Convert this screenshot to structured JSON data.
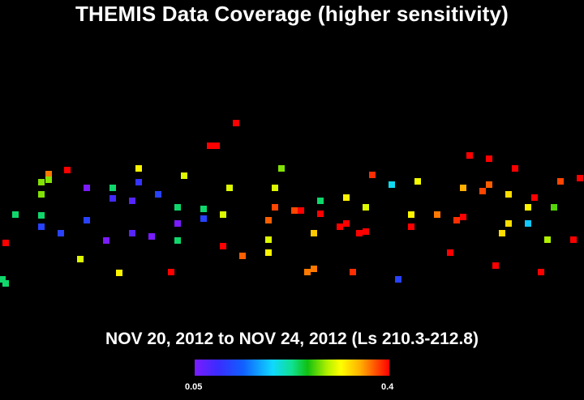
{
  "title": "THEMIS Data Coverage (higher sensitivity)",
  "subtitle": "NOV 20, 2012 to NOV 24, 2012 (Ls 210.3-212.8)",
  "colorbar": {
    "min_label": "0.05",
    "max_label": "0.4"
  },
  "chart_data": {
    "type": "heatmap",
    "value_range": [
      0.05,
      0.4
    ],
    "colormap": [
      "#7a1cff",
      "#3a2cff",
      "#1060ff",
      "#10d8ff",
      "#10e090",
      "#10c010",
      "#b0f000",
      "#ffff00",
      "#ffb000",
      "#ff5000",
      "#ff0000"
    ],
    "tracks": [
      {
        "lon": 7,
        "cells": [
          [
            350,
            0.2
          ],
          [
            300,
            0.4
          ]
        ]
      },
      {
        "lon": 19,
        "cells": [
          [
            265,
            0.2
          ]
        ]
      },
      {
        "lon": 51,
        "cells": [
          [
            225,
            0.25
          ],
          [
            240,
            0.25
          ],
          [
            266,
            0.2
          ],
          [
            280,
            0.1
          ]
        ]
      },
      {
        "lon": 60,
        "cells": [
          [
            215,
            0.35
          ],
          [
            222,
            0.25
          ]
        ]
      },
      {
        "lon": 75,
        "cells": [
          [
            288,
            0.1
          ]
        ]
      },
      {
        "lon": 83,
        "cells": [
          [
            210,
            0.4
          ]
        ]
      },
      {
        "lon": 99,
        "cells": [
          [
            320,
            0.28
          ]
        ]
      },
      {
        "lon": 107,
        "cells": [
          [
            232,
            0.05
          ],
          [
            272,
            0.1
          ]
        ]
      },
      {
        "lon": 131,
        "cells": [
          [
            297,
            0.05
          ]
        ]
      },
      {
        "lon": 139,
        "cells": [
          [
            232,
            0.2
          ],
          [
            245,
            0.08
          ]
        ]
      },
      {
        "lon": 147,
        "cells": [
          [
            337,
            0.3
          ]
        ]
      },
      {
        "lon": 163,
        "cells": [
          [
            248,
            0.07
          ],
          [
            288,
            0.07
          ]
        ]
      },
      {
        "lon": 171,
        "cells": [
          [
            208,
            0.3
          ],
          [
            225,
            0.09
          ]
        ]
      },
      {
        "lon": 187,
        "cells": [
          [
            292,
            0.05
          ]
        ]
      },
      {
        "lon": 195,
        "cells": [
          [
            240,
            0.1
          ]
        ]
      },
      {
        "lon": 211,
        "cells": [
          [
            336,
            0.4
          ]
        ]
      },
      {
        "lon": 219,
        "cells": [
          [
            256,
            0.2
          ],
          [
            276,
            0.05
          ],
          [
            297,
            0.2
          ]
        ]
      },
      {
        "lon": 227,
        "cells": [
          [
            217,
            0.28
          ]
        ]
      },
      {
        "lon": 251,
        "cells": [
          [
            258,
            0.2
          ],
          [
            270,
            0.1
          ]
        ]
      },
      {
        "lon": 259,
        "cells": [
          [
            180,
            0.4
          ]
        ]
      },
      {
        "lon": 267,
        "cells": [
          [
            180,
            0.4
          ]
        ]
      },
      {
        "lon": 275,
        "cells": [
          [
            265,
            0.28
          ],
          [
            304,
            0.4
          ]
        ]
      },
      {
        "lon": 283,
        "cells": [
          [
            232,
            0.28
          ]
        ]
      },
      {
        "lon": 291,
        "cells": [
          [
            152,
            0.4
          ]
        ]
      },
      {
        "lon": 299,
        "cells": [
          [
            316,
            0.36
          ]
        ]
      },
      {
        "lon": 331,
        "cells": [
          [
            272,
            0.36
          ],
          [
            296,
            0.28
          ],
          [
            312,
            0.3
          ]
        ]
      },
      {
        "lon": 339,
        "cells": [
          [
            232,
            0.28
          ],
          [
            256,
            0.37
          ]
        ]
      },
      {
        "lon": 347,
        "cells": [
          [
            208,
            0.25
          ]
        ]
      },
      {
        "lon": 363,
        "cells": [
          [
            260,
            0.37
          ]
        ]
      },
      {
        "lon": 371,
        "cells": [
          [
            260,
            0.4
          ]
        ]
      },
      {
        "lon": 379,
        "cells": [
          [
            336,
            0.35
          ]
        ]
      },
      {
        "lon": 387,
        "cells": [
          [
            288,
            0.32
          ],
          [
            332,
            0.35
          ]
        ]
      },
      {
        "lon": 395,
        "cells": [
          [
            248,
            0.2
          ],
          [
            264,
            0.4
          ]
        ]
      },
      {
        "lon": 419,
        "cells": [
          [
            280,
            0.4
          ]
        ]
      },
      {
        "lon": 427,
        "cells": [
          [
            244,
            0.3
          ],
          [
            276,
            0.4
          ]
        ]
      },
      {
        "lon": 435,
        "cells": [
          [
            336,
            0.38
          ]
        ]
      },
      {
        "lon": 443,
        "cells": [
          [
            288,
            0.4
          ]
        ]
      },
      {
        "lon": 451,
        "cells": [
          [
            256,
            0.28
          ],
          [
            286,
            0.4
          ]
        ]
      },
      {
        "lon": 459,
        "cells": [
          [
            216,
            0.38
          ]
        ]
      },
      {
        "lon": 483,
        "cells": [
          [
            228,
            0.16
          ]
        ]
      },
      {
        "lon": 491,
        "cells": [
          [
            345,
            0.1
          ]
        ]
      },
      {
        "lon": 507,
        "cells": [
          [
            265,
            0.3
          ],
          [
            280,
            0.4
          ]
        ]
      },
      {
        "lon": 515,
        "cells": [
          [
            224,
            0.29
          ]
        ]
      },
      {
        "lon": 539,
        "cells": [
          [
            265,
            0.35
          ]
        ]
      },
      {
        "lon": 555,
        "cells": [
          [
            312,
            0.4
          ]
        ]
      },
      {
        "lon": 563,
        "cells": [
          [
            272,
            0.38
          ]
        ]
      },
      {
        "lon": 571,
        "cells": [
          [
            232,
            0.33
          ],
          [
            268,
            0.4
          ]
        ]
      },
      {
        "lon": 579,
        "cells": [
          [
            192,
            0.4
          ]
        ]
      },
      {
        "lon": 595,
        "cells": [
          [
            236,
            0.37
          ]
        ]
      },
      {
        "lon": 603,
        "cells": [
          [
            196,
            0.4
          ],
          [
            228,
            0.36
          ]
        ]
      },
      {
        "lon": 611,
        "cells": [
          [
            328,
            0.4
          ]
        ]
      },
      {
        "lon": 619,
        "cells": [
          [
            288,
            0.31
          ]
        ]
      },
      {
        "lon": 627,
        "cells": [
          [
            240,
            0.31
          ],
          [
            276,
            0.31
          ]
        ]
      },
      {
        "lon": 635,
        "cells": [
          [
            208,
            0.4
          ]
        ]
      },
      {
        "lon": 651,
        "cells": [
          [
            256,
            0.3
          ],
          [
            276,
            0.15
          ]
        ]
      },
      {
        "lon": 659,
        "cells": [
          [
            244,
            0.4
          ]
        ]
      },
      {
        "lon": 667,
        "cells": [
          [
            336,
            0.4
          ]
        ]
      },
      {
        "lon": 675,
        "cells": [
          [
            296,
            0.26
          ]
        ]
      },
      {
        "lon": 683,
        "cells": [
          [
            256,
            0.24
          ]
        ]
      },
      {
        "lon": 691,
        "cells": [
          [
            224,
            0.37
          ]
        ]
      },
      {
        "lon": 707,
        "cells": [
          [
            296,
            0.4
          ]
        ]
      },
      {
        "lon": 715,
        "cells": [
          [
            220,
            0.4
          ]
        ]
      },
      {
        "lon": 3,
        "cells": [
          [
            345,
            0.2
          ]
        ]
      }
    ]
  }
}
